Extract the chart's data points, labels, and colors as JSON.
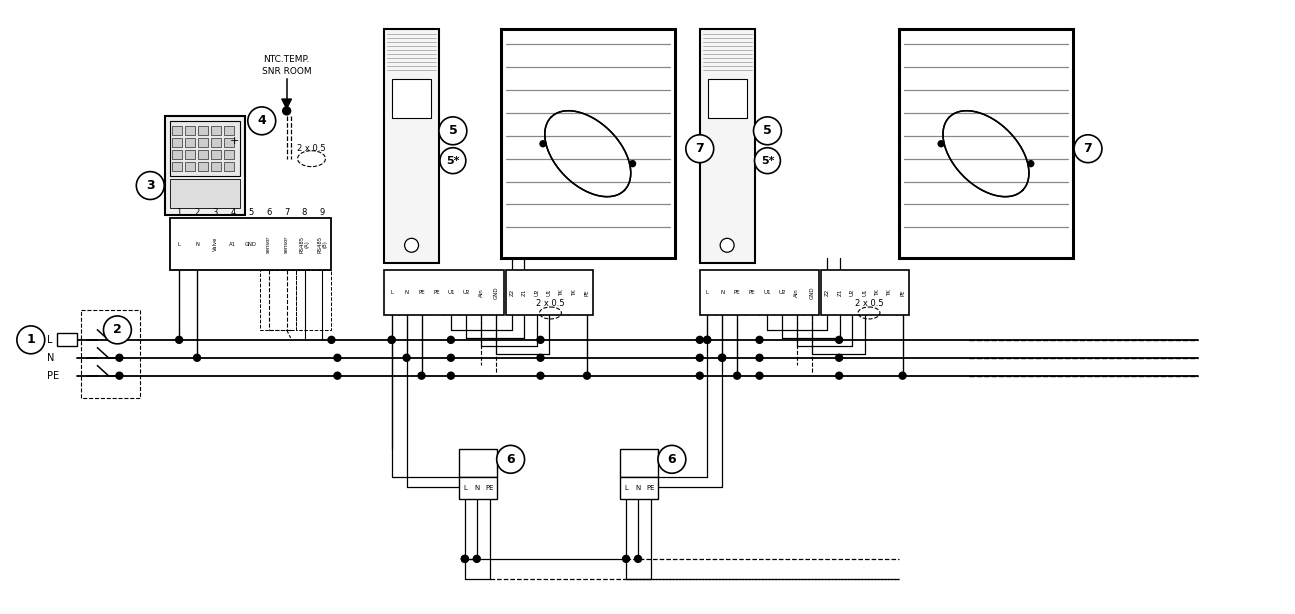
{
  "bg_color": "#ffffff",
  "line_color": "#000000",
  "controller_terminal_labels": [
    "L",
    "N",
    "Valve",
    "A1",
    "GND",
    "sensor",
    "sensor",
    "RS485\n(A)",
    "RS485\n(B)"
  ],
  "drive1_terminal_labels": [
    "L",
    "N",
    "PE",
    "PE",
    "U1",
    "U2",
    "Ain",
    "GND"
  ],
  "drive2_terminal_labels": [
    "L",
    "N",
    "PE",
    "PE",
    "U1",
    "U2",
    "Ain",
    "GND"
  ],
  "fan1_terminal_labels": [
    "Z2",
    "Z1",
    "U2",
    "U1",
    "TK",
    "TK",
    "PE"
  ],
  "fan2_terminal_labels": [
    "Z2",
    "Z1",
    "U2",
    "U1",
    "TK",
    "TK",
    "PE"
  ]
}
